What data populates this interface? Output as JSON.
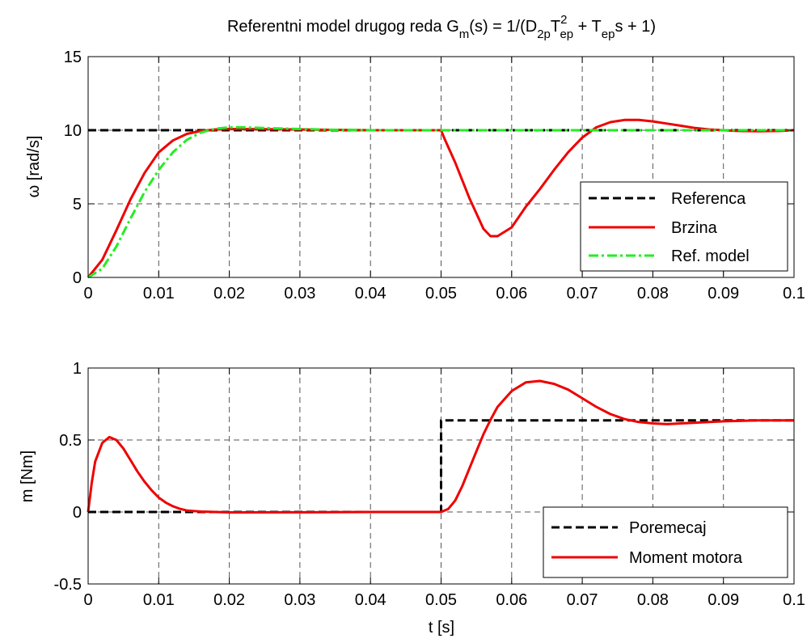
{
  "figure": {
    "title": {
      "main": "Referentni model drugog reda G",
      "sub_m": "m",
      "part2": "(s) = 1/(D",
      "sub_2p": "2p",
      "part3": "T",
      "sup_2": "2",
      "sub_ep": "ep",
      "part4": " + T",
      "sub_ep2": "ep",
      "part5": "s + 1)"
    }
  },
  "chart_data": [
    {
      "type": "line",
      "id": "top",
      "ylabel": "ω [rad/s]",
      "xlabel": "",
      "xlim": [
        0,
        0.1
      ],
      "ylim": [
        0,
        15
      ],
      "xticks": [
        0,
        0.01,
        0.02,
        0.03,
        0.04,
        0.05,
        0.06,
        0.07,
        0.08,
        0.09,
        0.1
      ],
      "xtick_labels": [
        "0",
        "0.01",
        "0.02",
        "0.03",
        "0.04",
        "0.05",
        "0.06",
        "0.07",
        "0.08",
        "0.09",
        "0.1"
      ],
      "yticks": [
        0,
        5,
        10,
        15
      ],
      "ytick_labels": [
        "0",
        "5",
        "10",
        "15"
      ],
      "grid": true,
      "legend_position": "lower-right",
      "series": [
        {
          "name": "Referenca",
          "color": "#000000",
          "style": "dashed",
          "points": [
            [
              0,
              10
            ],
            [
              0.1,
              10
            ]
          ]
        },
        {
          "name": "Brzina",
          "color": "#ee0000",
          "style": "solid",
          "points": [
            [
              0,
              0
            ],
            [
              0.002,
              1.2
            ],
            [
              0.004,
              3.2
            ],
            [
              0.006,
              5.3
            ],
            [
              0.008,
              7.1
            ],
            [
              0.01,
              8.5
            ],
            [
              0.012,
              9.3
            ],
            [
              0.014,
              9.75
            ],
            [
              0.016,
              9.95
            ],
            [
              0.018,
              10.05
            ],
            [
              0.02,
              10.08
            ],
            [
              0.025,
              10.07
            ],
            [
              0.03,
              10.05
            ],
            [
              0.035,
              10.02
            ],
            [
              0.04,
              10.0
            ],
            [
              0.05,
              10.0
            ],
            [
              0.0505,
              9.4
            ],
            [
              0.052,
              7.8
            ],
            [
              0.054,
              5.4
            ],
            [
              0.056,
              3.3
            ],
            [
              0.057,
              2.8
            ],
            [
              0.058,
              2.8
            ],
            [
              0.06,
              3.4
            ],
            [
              0.062,
              4.8
            ],
            [
              0.064,
              6.0
            ],
            [
              0.066,
              7.3
            ],
            [
              0.068,
              8.5
            ],
            [
              0.07,
              9.5
            ],
            [
              0.072,
              10.2
            ],
            [
              0.074,
              10.55
            ],
            [
              0.076,
              10.7
            ],
            [
              0.078,
              10.7
            ],
            [
              0.08,
              10.6
            ],
            [
              0.082,
              10.45
            ],
            [
              0.084,
              10.3
            ],
            [
              0.086,
              10.15
            ],
            [
              0.088,
              10.05
            ],
            [
              0.09,
              10.0
            ],
            [
              0.092,
              9.95
            ],
            [
              0.095,
              9.93
            ],
            [
              0.098,
              9.95
            ],
            [
              0.1,
              10.0
            ]
          ]
        },
        {
          "name": "Ref. model",
          "color": "#22ee22",
          "style": "dashdot",
          "points": [
            [
              0,
              0
            ],
            [
              0.002,
              0.6
            ],
            [
              0.004,
              2.1
            ],
            [
              0.006,
              4.0
            ],
            [
              0.008,
              5.8
            ],
            [
              0.01,
              7.3
            ],
            [
              0.012,
              8.5
            ],
            [
              0.014,
              9.35
            ],
            [
              0.016,
              9.85
            ],
            [
              0.018,
              10.1
            ],
            [
              0.02,
              10.2
            ],
            [
              0.022,
              10.2
            ],
            [
              0.025,
              10.15
            ],
            [
              0.03,
              10.08
            ],
            [
              0.035,
              10.03
            ],
            [
              0.04,
              10.0
            ],
            [
              0.1,
              10.0
            ]
          ]
        }
      ]
    },
    {
      "type": "line",
      "id": "bottom",
      "ylabel": "m [Nm]",
      "xlabel": "t [s]",
      "xlim": [
        0,
        0.1
      ],
      "ylim": [
        -0.5,
        1
      ],
      "xticks": [
        0,
        0.01,
        0.02,
        0.03,
        0.04,
        0.05,
        0.06,
        0.07,
        0.08,
        0.09,
        0.1
      ],
      "xtick_labels": [
        "0",
        "0.01",
        "0.02",
        "0.03",
        "0.04",
        "0.05",
        "0.06",
        "0.07",
        "0.08",
        "0.09",
        "0.1"
      ],
      "yticks": [
        -0.5,
        0,
        0.5,
        1
      ],
      "ytick_labels": [
        "-0.5",
        "0",
        "0.5",
        "1"
      ],
      "grid": true,
      "legend_position": "lower-right",
      "series": [
        {
          "name": "Poremecaj",
          "color": "#000000",
          "style": "dashed",
          "points": [
            [
              0,
              0
            ],
            [
              0.05,
              0
            ],
            [
              0.05,
              0.636
            ],
            [
              0.1,
              0.636
            ]
          ]
        },
        {
          "name": "Moment motora",
          "color": "#ee0000",
          "style": "solid",
          "points": [
            [
              0,
              0
            ],
            [
              0.0005,
              0.2
            ],
            [
              0.001,
              0.35
            ],
            [
              0.002,
              0.48
            ],
            [
              0.003,
              0.52
            ],
            [
              0.004,
              0.5
            ],
            [
              0.005,
              0.44
            ],
            [
              0.006,
              0.36
            ],
            [
              0.007,
              0.28
            ],
            [
              0.008,
              0.21
            ],
            [
              0.009,
              0.15
            ],
            [
              0.01,
              0.1
            ],
            [
              0.011,
              0.065
            ],
            [
              0.012,
              0.04
            ],
            [
              0.013,
              0.022
            ],
            [
              0.014,
              0.01
            ],
            [
              0.016,
              0.003
            ],
            [
              0.018,
              0.0
            ],
            [
              0.02,
              -0.003
            ],
            [
              0.03,
              -0.002
            ],
            [
              0.04,
              0.0
            ],
            [
              0.05,
              0.0
            ],
            [
              0.051,
              0.02
            ],
            [
              0.052,
              0.08
            ],
            [
              0.053,
              0.18
            ],
            [
              0.054,
              0.3
            ],
            [
              0.055,
              0.42
            ],
            [
              0.056,
              0.54
            ],
            [
              0.057,
              0.64
            ],
            [
              0.058,
              0.73
            ],
            [
              0.06,
              0.84
            ],
            [
              0.062,
              0.9
            ],
            [
              0.064,
              0.91
            ],
            [
              0.066,
              0.89
            ],
            [
              0.068,
              0.85
            ],
            [
              0.07,
              0.79
            ],
            [
              0.072,
              0.73
            ],
            [
              0.074,
              0.68
            ],
            [
              0.076,
              0.645
            ],
            [
              0.078,
              0.625
            ],
            [
              0.08,
              0.615
            ],
            [
              0.082,
              0.61
            ],
            [
              0.084,
              0.615
            ],
            [
              0.086,
              0.62
            ],
            [
              0.088,
              0.625
            ],
            [
              0.09,
              0.63
            ],
            [
              0.095,
              0.636
            ],
            [
              0.1,
              0.636
            ]
          ]
        }
      ]
    }
  ]
}
